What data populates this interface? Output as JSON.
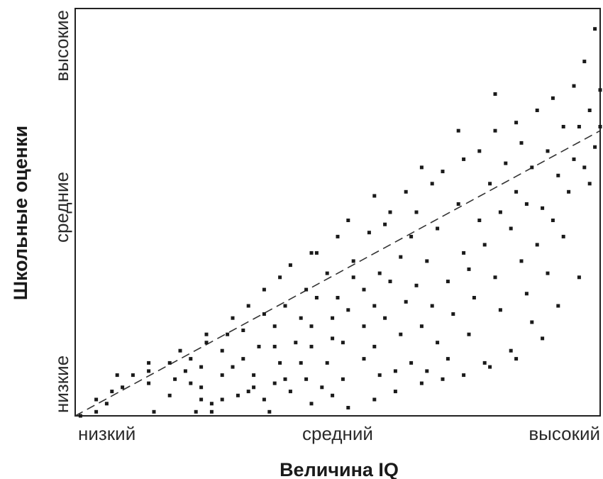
{
  "chart_data": {
    "type": "scatter",
    "title": "",
    "xlabel": "Величина IQ",
    "ylabel": "Школьные оценки",
    "x_tick_labels": [
      "низкий",
      "средний",
      "высокий"
    ],
    "y_tick_labels": [
      "низкие",
      "средние",
      "высокие"
    ],
    "xlim": [
      0,
      100
    ],
    "ylim": [
      0,
      100
    ],
    "grid": false,
    "legend": "none",
    "trend_line": {
      "style": "dashed",
      "from": [
        0,
        0
      ],
      "to": [
        100,
        70
      ]
    },
    "points": [
      [
        1,
        0
      ],
      [
        4,
        1
      ],
      [
        6,
        3
      ],
      [
        4,
        4
      ],
      [
        7,
        6
      ],
      [
        9,
        7
      ],
      [
        11,
        10
      ],
      [
        8,
        10
      ],
      [
        15,
        1
      ],
      [
        14,
        8
      ],
      [
        14,
        11
      ],
      [
        14,
        13
      ],
      [
        18,
        13
      ],
      [
        19,
        9
      ],
      [
        18,
        5
      ],
      [
        20,
        16
      ],
      [
        22,
        8
      ],
      [
        21,
        11
      ],
      [
        22,
        14
      ],
      [
        24,
        4
      ],
      [
        24,
        7
      ],
      [
        24,
        12
      ],
      [
        25,
        18
      ],
      [
        25,
        20
      ],
      [
        26,
        3
      ],
      [
        28,
        4
      ],
      [
        28,
        10
      ],
      [
        28,
        16
      ],
      [
        29,
        20
      ],
      [
        31,
        5
      ],
      [
        30,
        12
      ],
      [
        30,
        24
      ],
      [
        32,
        14
      ],
      [
        32,
        21
      ],
      [
        33,
        27
      ],
      [
        34,
        7
      ],
      [
        34,
        10
      ],
      [
        35,
        17
      ],
      [
        36,
        4
      ],
      [
        36,
        25
      ],
      [
        36,
        31
      ],
      [
        38,
        8
      ],
      [
        38,
        17
      ],
      [
        38,
        22
      ],
      [
        39,
        13
      ],
      [
        39,
        34
      ],
      [
        40,
        27
      ],
      [
        41,
        6
      ],
      [
        41,
        37
      ],
      [
        42,
        18
      ],
      [
        43,
        13
      ],
      [
        43,
        24
      ],
      [
        44,
        9
      ],
      [
        44,
        31
      ],
      [
        45,
        17
      ],
      [
        45,
        22
      ],
      [
        46,
        29
      ],
      [
        46,
        40
      ],
      [
        47,
        7
      ],
      [
        48,
        13
      ],
      [
        48,
        35
      ],
      [
        49,
        19
      ],
      [
        49,
        24
      ],
      [
        50,
        29
      ],
      [
        50,
        44
      ],
      [
        51,
        9
      ],
      [
        51,
        18
      ],
      [
        52,
        26
      ],
      [
        53,
        38
      ],
      [
        53,
        34
      ],
      [
        55,
        14
      ],
      [
        55,
        22
      ],
      [
        55,
        31
      ],
      [
        56,
        45
      ],
      [
        57,
        17
      ],
      [
        57,
        27
      ],
      [
        57,
        54
      ],
      [
        58,
        10
      ],
      [
        58,
        35
      ],
      [
        59,
        24
      ],
      [
        59,
        47
      ],
      [
        60,
        33
      ],
      [
        61,
        11
      ],
      [
        62,
        20
      ],
      [
        62,
        39
      ],
      [
        63,
        28
      ],
      [
        63,
        55
      ],
      [
        64,
        13
      ],
      [
        64,
        44
      ],
      [
        65,
        32
      ],
      [
        65,
        50
      ],
      [
        66,
        22
      ],
      [
        67,
        11
      ],
      [
        67,
        38
      ],
      [
        68,
        57
      ],
      [
        68,
        27
      ],
      [
        69,
        18
      ],
      [
        69,
        46
      ],
      [
        70,
        60
      ],
      [
        71,
        33
      ],
      [
        71,
        14
      ],
      [
        72,
        25
      ],
      [
        73,
        52
      ],
      [
        74,
        40
      ],
      [
        74,
        63
      ],
      [
        75,
        20
      ],
      [
        75,
        36
      ],
      [
        76,
        29
      ],
      [
        77,
        48
      ],
      [
        77,
        65
      ],
      [
        78,
        13
      ],
      [
        78,
        42
      ],
      [
        79,
        57
      ],
      [
        80,
        34
      ],
      [
        80,
        70
      ],
      [
        81,
        26
      ],
      [
        81,
        50
      ],
      [
        82,
        62
      ],
      [
        83,
        16
      ],
      [
        83,
        46
      ],
      [
        84,
        55
      ],
      [
        84,
        72
      ],
      [
        85,
        38
      ],
      [
        85,
        67
      ],
      [
        86,
        30
      ],
      [
        86,
        52
      ],
      [
        87,
        61
      ],
      [
        88,
        42
      ],
      [
        88,
        75
      ],
      [
        89,
        51
      ],
      [
        89,
        19
      ],
      [
        90,
        65
      ],
      [
        90,
        35
      ],
      [
        91,
        48
      ],
      [
        91,
        78
      ],
      [
        92,
        59
      ],
      [
        92,
        27
      ],
      [
        93,
        71
      ],
      [
        93,
        44
      ],
      [
        94,
        55
      ],
      [
        95,
        81
      ],
      [
        95,
        63
      ],
      [
        96,
        34
      ],
      [
        96,
        71
      ],
      [
        97,
        61
      ],
      [
        97,
        87
      ],
      [
        98,
        75
      ],
      [
        98,
        57
      ],
      [
        99,
        95
      ],
      [
        99,
        66
      ],
      [
        100,
        80
      ],
      [
        100,
        71
      ],
      [
        26,
        1
      ],
      [
        33,
        6
      ],
      [
        37,
        1
      ],
      [
        40,
        9
      ],
      [
        45,
        3
      ],
      [
        49,
        5
      ],
      [
        52,
        2
      ],
      [
        57,
        4
      ],
      [
        61,
        6
      ],
      [
        66,
        8
      ],
      [
        70,
        9
      ],
      [
        74,
        10
      ],
      [
        79,
        12
      ],
      [
        84,
        14
      ],
      [
        87,
        23
      ],
      [
        23,
        1
      ],
      [
        45,
        40
      ],
      [
        52,
        48
      ],
      [
        60,
        50
      ],
      [
        66,
        61
      ],
      [
        73,
        70
      ],
      [
        80,
        79
      ]
    ]
  }
}
